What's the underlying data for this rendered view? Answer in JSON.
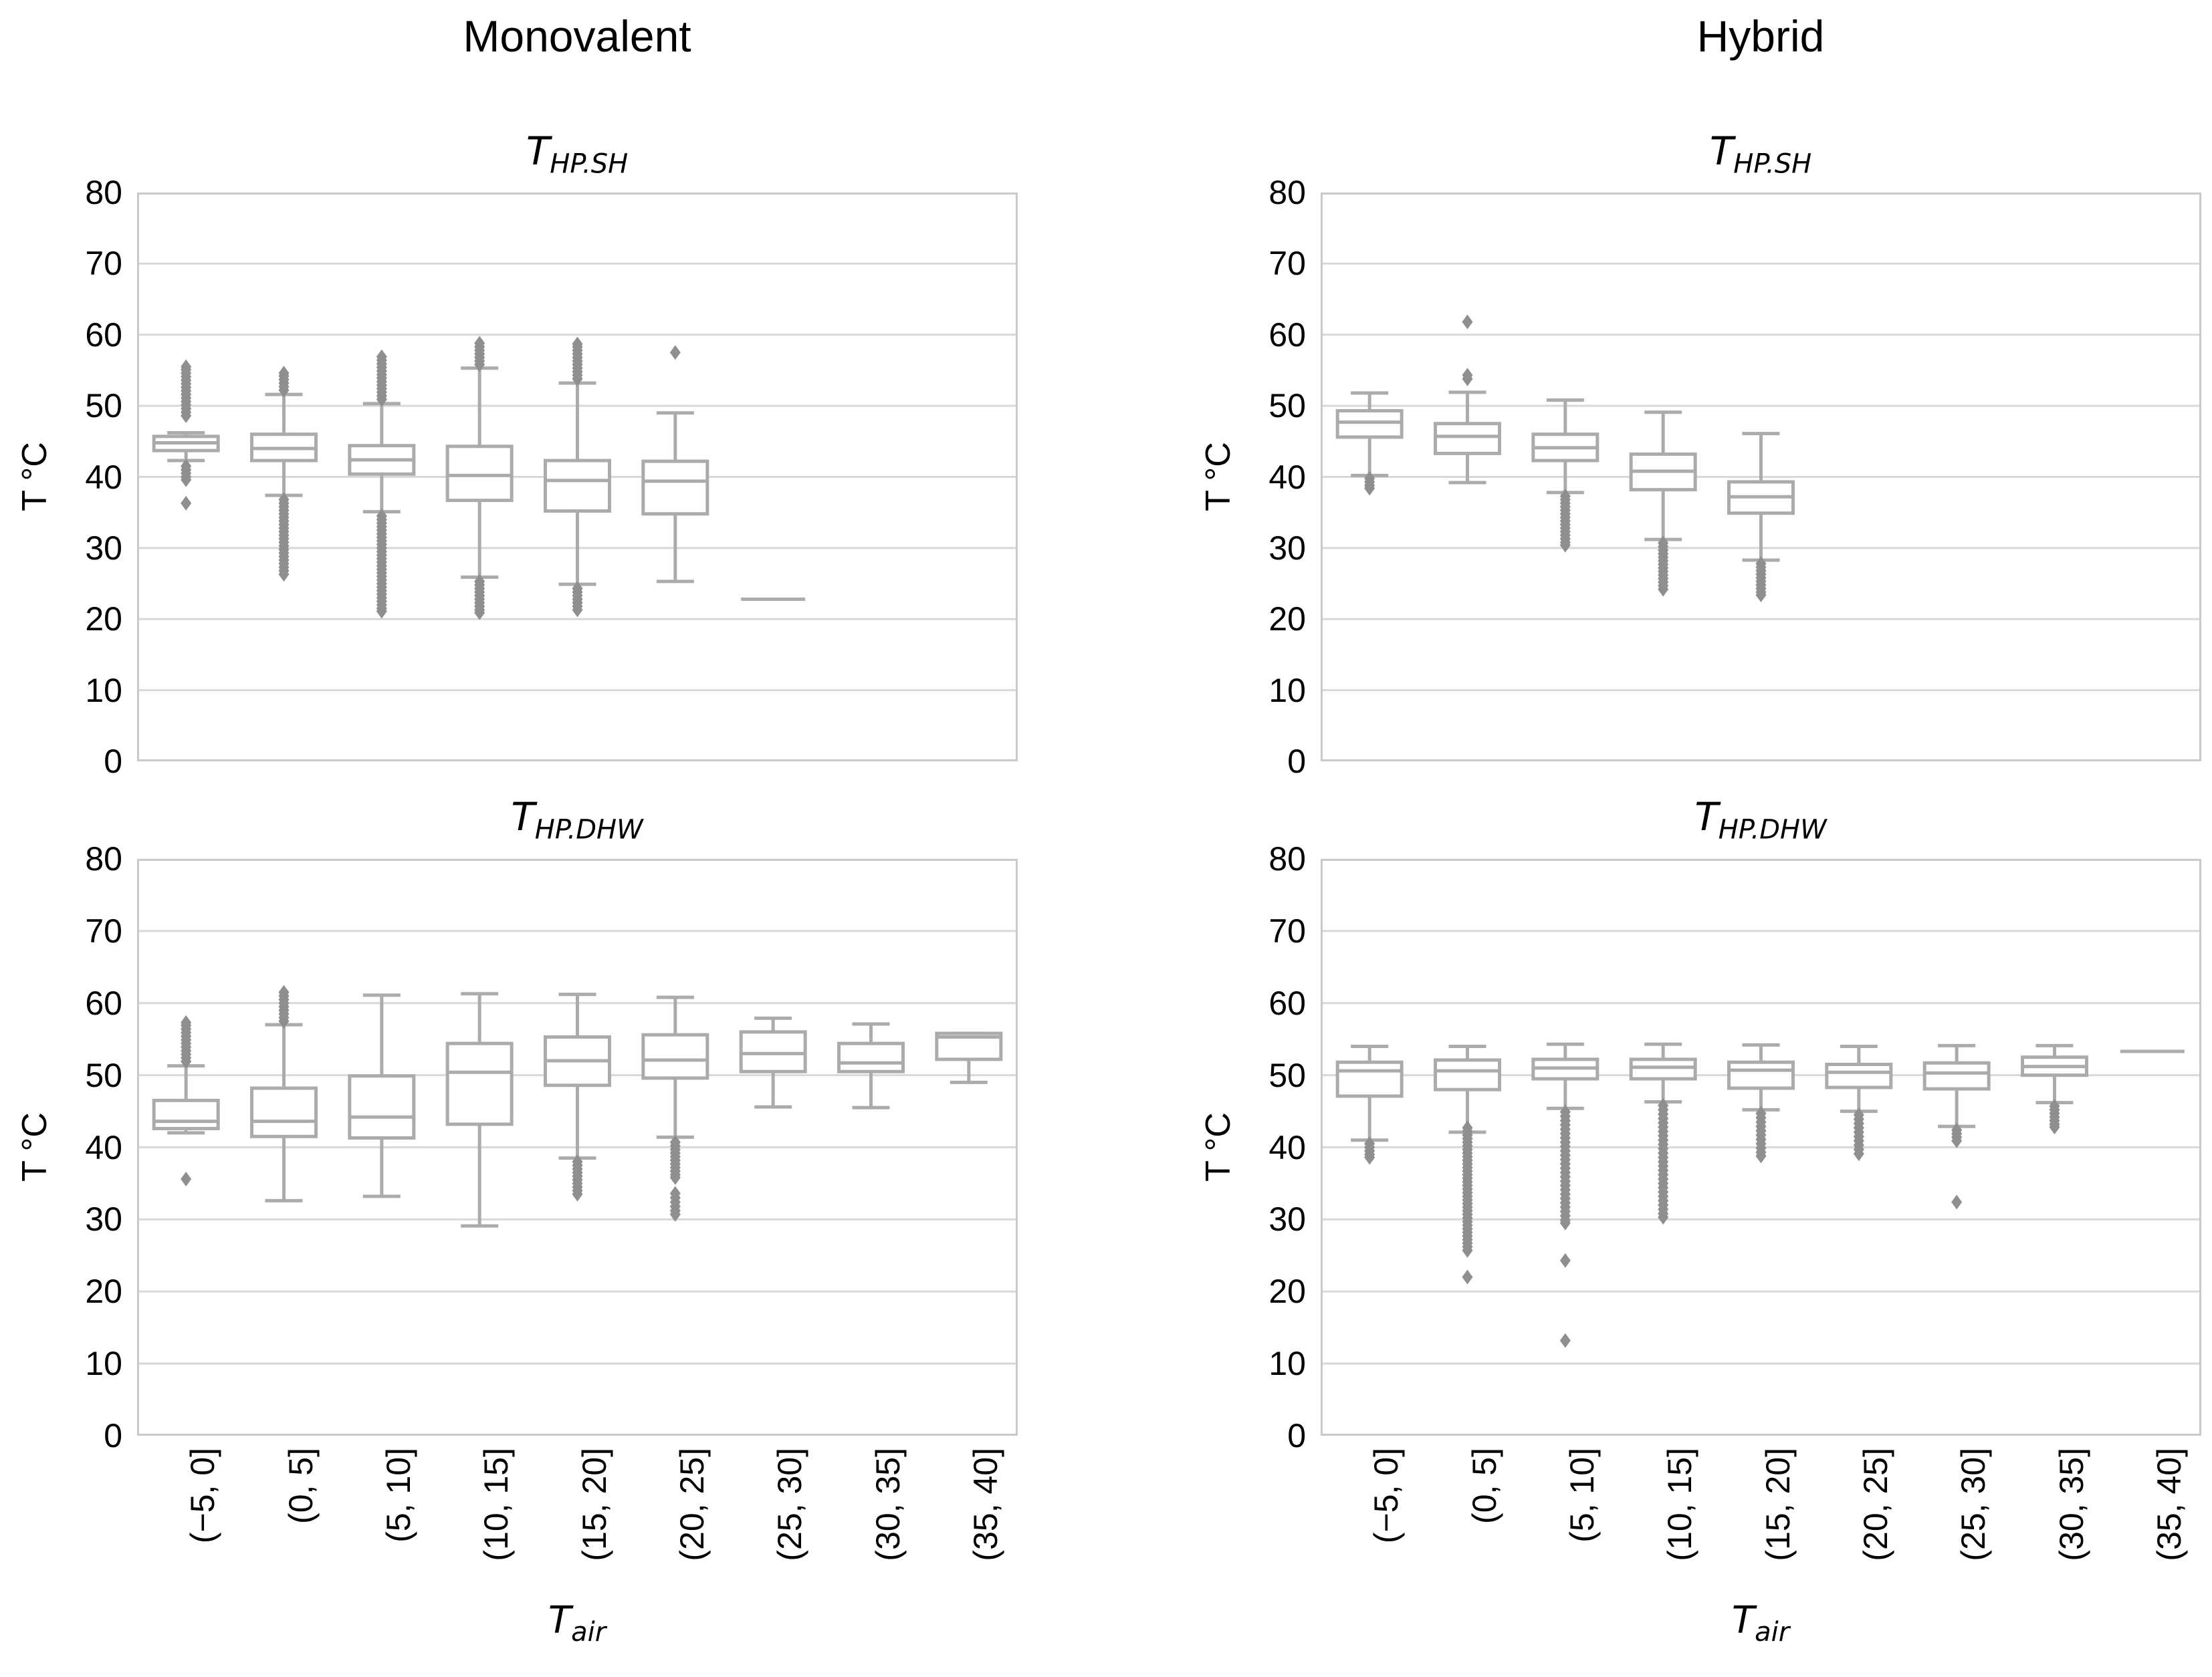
{
  "figure": {
    "col_titles": [
      "Monovalent",
      "Hybrid"
    ],
    "ylabel": "T °C",
    "xlabel_main": "T",
    "xlabel_sub": "air"
  },
  "chart_data": {
    "type": "box",
    "ylim": [
      0,
      80
    ],
    "yticks": [
      0,
      10,
      20,
      30,
      40,
      50,
      60,
      70,
      80
    ],
    "grid": "horizontal",
    "categories": [
      "(−5, 0]",
      "(0, 5]",
      "(5, 10]",
      "(10, 15]",
      "(15, 20]",
      "(20, 25]",
      "(25, 30]",
      "(30, 35]",
      "(35, 40]"
    ],
    "colors": {
      "box": "#ababab",
      "box_fill": "#ffffff",
      "flier": "#8f8f8f",
      "grid": "#d8d8d8",
      "spine": "#c9c9c9",
      "text": "#000000"
    },
    "panels": [
      {
        "key": "monovalent-sh",
        "column": "Monovalent",
        "title_main": "T",
        "title_sub": "HP.SH",
        "boxes": [
          {
            "lo": 42.3,
            "q1": 43.7,
            "med": 44.8,
            "q3": 45.7,
            "hi": 46.2,
            "fliers": [
              48.6,
              49.1,
              49.6,
              50.1,
              50.6,
              51.1,
              51.6,
              52.1,
              52.6,
              53.1,
              53.6,
              54.1,
              54.6,
              55.1,
              55.5,
              41.5,
              41.0,
              40.5,
              40.0,
              39.6,
              36.3
            ]
          },
          {
            "lo": 37.4,
            "q1": 42.3,
            "med": 44.0,
            "q3": 46.0,
            "hi": 51.6,
            "fliers": [
              52.2,
              52.7,
              53.2,
              53.7,
              54.2,
              54.6,
              36.8,
              36.3,
              35.8,
              35.3,
              34.8,
              34.3,
              33.8,
              33.3,
              32.8,
              32.3,
              31.8,
              31.3,
              30.8,
              30.3,
              29.8,
              29.3,
              28.8,
              28.3,
              27.8,
              27.3,
              26.8,
              26.3
            ]
          },
          {
            "lo": 35.1,
            "q1": 40.4,
            "med": 42.4,
            "q3": 44.4,
            "hi": 50.3,
            "fliers": [
              50.9,
              51.4,
              51.9,
              52.4,
              52.9,
              53.4,
              53.9,
              54.4,
              54.9,
              55.4,
              55.9,
              56.4,
              56.9,
              34.5,
              34.0,
              33.5,
              33.0,
              32.5,
              32.0,
              31.5,
              31.0,
              30.5,
              30.0,
              29.5,
              29.0,
              28.5,
              28.0,
              27.5,
              27.0,
              26.5,
              26.0,
              25.5,
              25.0,
              24.5,
              24.0,
              23.5,
              23.0,
              22.5,
              22.0,
              21.5,
              21.1
            ]
          },
          {
            "lo": 25.9,
            "q1": 36.7,
            "med": 40.2,
            "q3": 44.3,
            "hi": 55.3,
            "fliers": [
              55.8,
              56.3,
              56.8,
              57.3,
              57.8,
              58.3,
              58.8,
              25.3,
              24.8,
              24.3,
              23.8,
              23.3,
              22.8,
              22.3,
              21.8,
              21.3,
              20.9
            ]
          },
          {
            "lo": 24.9,
            "q1": 35.2,
            "med": 39.5,
            "q3": 42.3,
            "hi": 53.2,
            "fliers": [
              53.8,
              54.3,
              54.8,
              55.3,
              55.8,
              56.3,
              56.8,
              57.3,
              57.8,
              58.3,
              58.7,
              24.3,
              23.8,
              23.3,
              22.8,
              22.3,
              21.8,
              21.3
            ]
          },
          {
            "lo": 25.3,
            "q1": 34.8,
            "med": 39.4,
            "q3": 42.2,
            "hi": 49.0,
            "fliers": [
              57.5
            ]
          },
          {
            "lo": 22.8,
            "q1": 22.8,
            "med": 22.8,
            "q3": 22.8,
            "hi": 22.8,
            "fliers": []
          },
          null,
          null
        ]
      },
      {
        "key": "hybrid-sh",
        "column": "Hybrid",
        "title_main": "T",
        "title_sub": "HP.SH",
        "boxes": [
          {
            "lo": 40.2,
            "q1": 45.6,
            "med": 47.7,
            "q3": 49.3,
            "hi": 51.8,
            "fliers": [
              39.8,
              39.3,
              38.8,
              38.4
            ]
          },
          {
            "lo": 39.2,
            "q1": 43.3,
            "med": 45.7,
            "q3": 47.5,
            "hi": 51.9,
            "fliers": [
              53.8,
              54.3,
              61.8
            ]
          },
          {
            "lo": 37.8,
            "q1": 42.3,
            "med": 44.1,
            "q3": 46.0,
            "hi": 50.8,
            "fliers": [
              37.3,
              36.8,
              36.3,
              35.8,
              35.3,
              34.8,
              34.3,
              33.8,
              33.3,
              32.8,
              32.3,
              31.8,
              31.3,
              30.8,
              30.4
            ]
          },
          {
            "lo": 31.2,
            "q1": 38.2,
            "med": 40.8,
            "q3": 43.2,
            "hi": 49.1,
            "fliers": [
              30.7,
              30.2,
              29.7,
              29.2,
              28.7,
              28.2,
              27.7,
              27.2,
              26.7,
              26.2,
              25.7,
              25.2,
              24.7,
              24.2
            ]
          },
          {
            "lo": 28.3,
            "q1": 34.9,
            "med": 37.2,
            "q3": 39.3,
            "hi": 46.1,
            "fliers": [
              27.8,
              27.3,
              26.8,
              26.3,
              25.8,
              25.3,
              24.8,
              24.3,
              23.8,
              23.4
            ]
          },
          null,
          null,
          null,
          null
        ]
      },
      {
        "key": "monovalent-dhw",
        "column": "Monovalent",
        "title_main": "T",
        "title_sub": "HP.DHW",
        "boxes": [
          {
            "lo": 42.0,
            "q1": 42.6,
            "med": 43.6,
            "q3": 46.5,
            "hi": 51.3,
            "fliers": [
              51.9,
              52.4,
              52.9,
              53.4,
              53.9,
              54.4,
              54.9,
              55.4,
              55.9,
              56.4,
              56.9,
              57.3,
              35.6
            ]
          },
          {
            "lo": 32.6,
            "q1": 41.5,
            "med": 43.6,
            "q3": 48.2,
            "hi": 57.0,
            "fliers": [
              57.5,
              58.0,
              58.5,
              59.0,
              59.5,
              60.0,
              60.5,
              61.0,
              61.5
            ]
          },
          {
            "lo": 33.2,
            "q1": 41.3,
            "med": 44.2,
            "q3": 49.9,
            "hi": 61.1,
            "fliers": []
          },
          {
            "lo": 29.1,
            "q1": 43.2,
            "med": 50.4,
            "q3": 54.4,
            "hi": 61.3,
            "fliers": []
          },
          {
            "lo": 38.5,
            "q1": 48.6,
            "med": 52.0,
            "q3": 55.3,
            "hi": 61.2,
            "fliers": [
              38.0,
              37.5,
              37.0,
              36.5,
              36.0,
              35.5,
              35.0,
              34.5,
              34.0,
              33.5
            ]
          },
          {
            "lo": 41.4,
            "q1": 49.6,
            "med": 52.1,
            "q3": 55.6,
            "hi": 60.8,
            "fliers": [
              40.7,
              40.2,
              39.7,
              39.2,
              38.7,
              38.2,
              37.7,
              37.2,
              36.7,
              36.2,
              35.8,
              33.6,
              33.0,
              32.4,
              31.8,
              31.2,
              30.7
            ]
          },
          {
            "lo": 45.6,
            "q1": 50.5,
            "med": 53.0,
            "q3": 56.0,
            "hi": 57.9,
            "fliers": []
          },
          {
            "lo": 45.5,
            "q1": 50.5,
            "med": 51.7,
            "q3": 54.4,
            "hi": 57.1,
            "fliers": []
          },
          {
            "lo": 49.0,
            "q1": 52.2,
            "med": 55.3,
            "q3": 55.8,
            "hi": 55.8,
            "fliers": []
          }
        ]
      },
      {
        "key": "hybrid-dhw",
        "column": "Hybrid",
        "title_main": "T",
        "title_sub": "HP.DHW",
        "boxes": [
          {
            "lo": 41.0,
            "q1": 47.1,
            "med": 50.6,
            "q3": 51.8,
            "hi": 54.0,
            "fliers": [
              40.5,
              40.0,
              39.5,
              39.0,
              38.6
            ]
          },
          {
            "lo": 42.1,
            "q1": 48.0,
            "med": 50.6,
            "q3": 52.1,
            "hi": 54.0,
            "fliers": [
              42.7,
              42.2,
              41.7,
              41.2,
              40.7,
              40.2,
              39.7,
              39.2,
              38.7,
              38.2,
              37.7,
              37.2,
              36.7,
              36.2,
              35.7,
              35.2,
              34.7,
              34.2,
              33.7,
              33.2,
              32.7,
              32.2,
              31.7,
              31.2,
              30.7,
              30.2,
              29.7,
              29.2,
              28.7,
              28.2,
              27.7,
              27.2,
              26.7,
              26.2,
              25.7,
              22.0
            ]
          },
          {
            "lo": 45.4,
            "q1": 49.5,
            "med": 51.0,
            "q3": 52.2,
            "hi": 54.3,
            "fliers": [
              44.9,
              44.3,
              43.7,
              43.1,
              42.5,
              41.9,
              41.3,
              40.7,
              40.1,
              39.5,
              38.9,
              38.3,
              37.7,
              37.1,
              36.5,
              35.9,
              35.3,
              34.7,
              34.1,
              33.5,
              32.9,
              32.3,
              31.7,
              31.1,
              30.5,
              29.9,
              29.5,
              24.3,
              13.2
            ]
          },
          {
            "lo": 46.3,
            "q1": 49.5,
            "med": 51.1,
            "q3": 52.2,
            "hi": 54.3,
            "fliers": [
              45.8,
              45.2,
              44.6,
              44.0,
              43.4,
              42.8,
              42.2,
              41.6,
              41.0,
              40.4,
              39.8,
              39.2,
              38.6,
              38.0,
              37.4,
              36.8,
              36.2,
              35.6,
              35.0,
              34.4,
              33.8,
              33.2,
              32.6,
              32.0,
              31.4,
              30.8,
              30.3
            ]
          },
          {
            "lo": 45.2,
            "q1": 48.2,
            "med": 50.7,
            "q3": 51.8,
            "hi": 54.2,
            "fliers": [
              44.7,
              44.1,
              43.5,
              42.9,
              42.3,
              41.7,
              41.1,
              40.5,
              39.9,
              39.3,
              38.8
            ]
          },
          {
            "lo": 45.0,
            "q1": 48.3,
            "med": 50.4,
            "q3": 51.5,
            "hi": 54.0,
            "fliers": [
              44.5,
              43.9,
              43.3,
              42.7,
              42.1,
              41.5,
              40.9,
              40.3,
              39.7,
              39.1
            ]
          },
          {
            "lo": 42.9,
            "q1": 48.1,
            "med": 50.3,
            "q3": 51.7,
            "hi": 54.1,
            "fliers": [
              42.4,
              41.9,
              41.4,
              40.9,
              32.4
            ]
          },
          {
            "lo": 46.2,
            "q1": 50.0,
            "med": 51.2,
            "q3": 52.5,
            "hi": 54.1,
            "fliers": [
              45.7,
              45.2,
              44.7,
              44.2,
              43.7,
              43.2,
              42.8
            ]
          },
          {
            "lo": 53.3,
            "q1": 53.3,
            "med": 53.3,
            "q3": 53.3,
            "hi": 53.3,
            "fliers": []
          }
        ]
      }
    ]
  }
}
